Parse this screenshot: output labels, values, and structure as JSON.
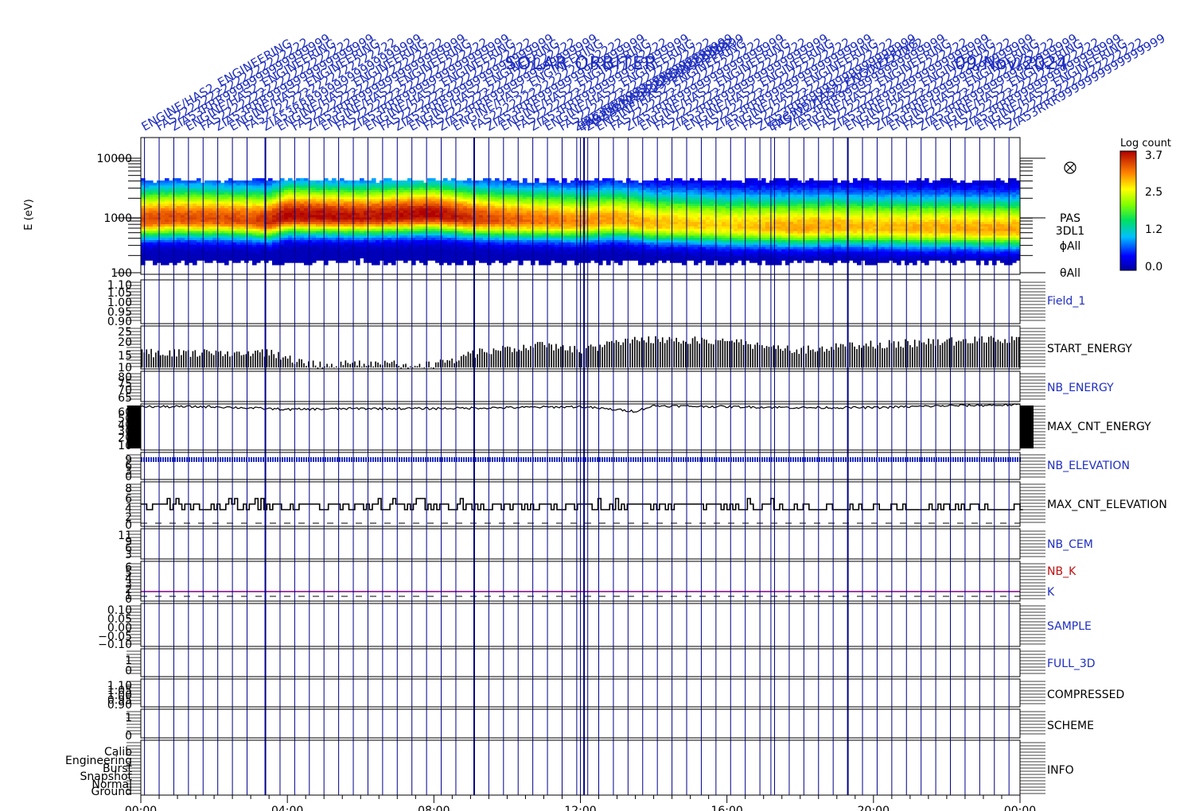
{
  "header": {
    "mission": "SOLAR  ORBITER",
    "date": "09/Nov/2024",
    "event_label_lines": [
      "ENGINE/HAS2_ENGINEERING",
      "FAS22222222222222222222",
      "ZIA53RRR9999999999999999"
    ]
  },
  "colors": {
    "axis": "#000000",
    "vline": "#00008b",
    "label_blue": "#1f2fbf",
    "label_red": "#c01010",
    "purple_line": "#800080"
  },
  "chart_data": {
    "type": "stacked-timeseries",
    "time_range": [
      "00:00",
      "24:00"
    ],
    "x_tick_labels": [
      "00:00",
      "04:00",
      "08:00",
      "12:00",
      "16:00",
      "20:00",
      "00:00"
    ],
    "spectrogram": {
      "name": "PAS",
      "ylabel": "E (eV)",
      "ylim": [
        100,
        10000
      ],
      "log_scale": true,
      "tick_labels": [
        "10000",
        "1000",
        "100"
      ],
      "labels": [
        "PAS",
        "3DL1",
        "ϕAll",
        "θAll"
      ],
      "colorbar": {
        "title": "Log count",
        "range": [
          0.0,
          3.7
        ],
        "tick_labels": [
          "3.7",
          "2.5",
          "1.2",
          "0.0"
        ]
      },
      "peak_energy_profile": {
        "t_hours": [
          0,
          1,
          2,
          3,
          3.5,
          4,
          5,
          6,
          7,
          8,
          9,
          10,
          11,
          12,
          13,
          14,
          15,
          16,
          17,
          18,
          19,
          20,
          21,
          22,
          23,
          24
        ],
        "e_ev": [
          850,
          900,
          880,
          850,
          800,
          1000,
          980,
          950,
          1000,
          1050,
          900,
          850,
          820,
          780,
          850,
          720,
          700,
          650,
          640,
          620,
          640,
          620,
          600,
          600,
          580,
          580
        ]
      },
      "intensity_profile": {
        "t_hours": [
          0,
          3,
          4,
          6,
          8,
          10,
          12,
          14,
          16,
          18,
          20,
          24
        ],
        "peak_log_count": [
          3.3,
          3.3,
          3.7,
          3.6,
          3.7,
          3.2,
          3.0,
          2.8,
          2.7,
          2.9,
          2.8,
          2.9
        ]
      }
    },
    "panels": [
      {
        "name": "Field_1",
        "label_color": "blue",
        "tick_labels": [
          "1.10",
          "1.05",
          "1.00",
          "0.95",
          "0.90"
        ],
        "ylim": [
          0.9,
          1.1
        ]
      },
      {
        "name": "START_ENERGY",
        "label_color": "black",
        "tick_labels": [
          "25",
          "20",
          "15",
          "10"
        ],
        "ylim": [
          10,
          25
        ],
        "profile_t": [
          0,
          3.5,
          4.5,
          8,
          9.5,
          11,
          12,
          13.5,
          16,
          18,
          20,
          24
        ],
        "profile_max": [
          17,
          17,
          13,
          13,
          18,
          20,
          18,
          22,
          21,
          18,
          20,
          22
        ]
      },
      {
        "name": "NB_ENERGY",
        "label_color": "blue",
        "tick_labels": [
          "80",
          "75",
          "70",
          "65"
        ],
        "ylim": [
          65,
          80
        ]
      },
      {
        "name": "MAX_CNT_ENERGY",
        "label_color": "black",
        "tick_labels": [
          "60",
          "50",
          "40",
          "30",
          "20",
          "10"
        ],
        "ylim": [
          10,
          60
        ],
        "profile_t": [
          0,
          2,
          4,
          6,
          8,
          10,
          12,
          13.5,
          14,
          16,
          18,
          20,
          22,
          24
        ],
        "profile_v": [
          57,
          57,
          54,
          55,
          55,
          56,
          57,
          52,
          58,
          57,
          56,
          56,
          58,
          59
        ]
      },
      {
        "name": "NB_ELEVATION",
        "label_color": "blue",
        "tick_labels": [
          "9",
          "6",
          "3",
          "0"
        ],
        "ylim": [
          0,
          9
        ]
      },
      {
        "name": "MAX_CNT_ELEVATION",
        "label_color": "black",
        "tick_labels": [
          "8",
          "6",
          "4",
          "2",
          "0"
        ],
        "ylim": [
          0,
          8
        ]
      },
      {
        "name": "NB_CEM",
        "label_color": "blue",
        "tick_labels": [
          "11",
          "9",
          "6",
          "3"
        ],
        "ylim": [
          3,
          11
        ]
      },
      {
        "name": "NB_K",
        "label_color": "red",
        "tick_labels": [
          "6",
          "5",
          "4",
          "3",
          "2",
          "1",
          "0"
        ],
        "ylim": [
          0,
          6
        ],
        "second_label": "K"
      },
      {
        "name": "SAMPLE",
        "label_color": "blue",
        "tick_labels": [
          "0.10",
          "0.05",
          "0.00",
          "−0.05",
          "−0.10"
        ],
        "ylim": [
          -0.1,
          0.1
        ]
      },
      {
        "name": "FULL_3D",
        "label_color": "blue",
        "tick_labels": [
          "1",
          "0"
        ],
        "ylim": [
          0,
          1
        ]
      },
      {
        "name": "COMPRESSED",
        "label_color": "black",
        "tick_labels": [
          "1.10",
          "1.05",
          "1.00",
          "0.95",
          "0.90"
        ],
        "ylim": [
          0.9,
          1.1
        ]
      },
      {
        "name": "SCHEME",
        "label_color": "black",
        "tick_labels": [
          "1",
          "0"
        ],
        "ylim": [
          0,
          1
        ]
      },
      {
        "name": "INFO",
        "label_color": "black",
        "tick_labels": [
          "Calib",
          "Engineering",
          "Burst",
          "Snapshot",
          "Normal",
          "Ground"
        ]
      }
    ],
    "event_times_hours": [
      0.1,
      0.5,
      0.9,
      1.3,
      1.7,
      2.1,
      2.5,
      2.9,
      3.4,
      3.8,
      4.2,
      4.6,
      5.0,
      5.4,
      5.8,
      6.2,
      6.6,
      7.0,
      7.4,
      7.8,
      8.2,
      8.6,
      9.1,
      9.5,
      9.9,
      10.3,
      10.7,
      11.1,
      11.5,
      11.9,
      12.0,
      12.1,
      12.2,
      12.5,
      12.9,
      13.3,
      13.7,
      14.1,
      14.5,
      14.9,
      15.3,
      15.7,
      16.1,
      16.5,
      16.9,
      17.2,
      17.3,
      17.7,
      18.1,
      18.5,
      18.9,
      19.3,
      19.7,
      20.1,
      20.5,
      20.9,
      21.3,
      21.7,
      22.1,
      22.5,
      22.9,
      23.3,
      23.7
    ],
    "bold_event_times_hours": [
      3.4,
      9.1,
      12.1,
      19.3
    ]
  }
}
